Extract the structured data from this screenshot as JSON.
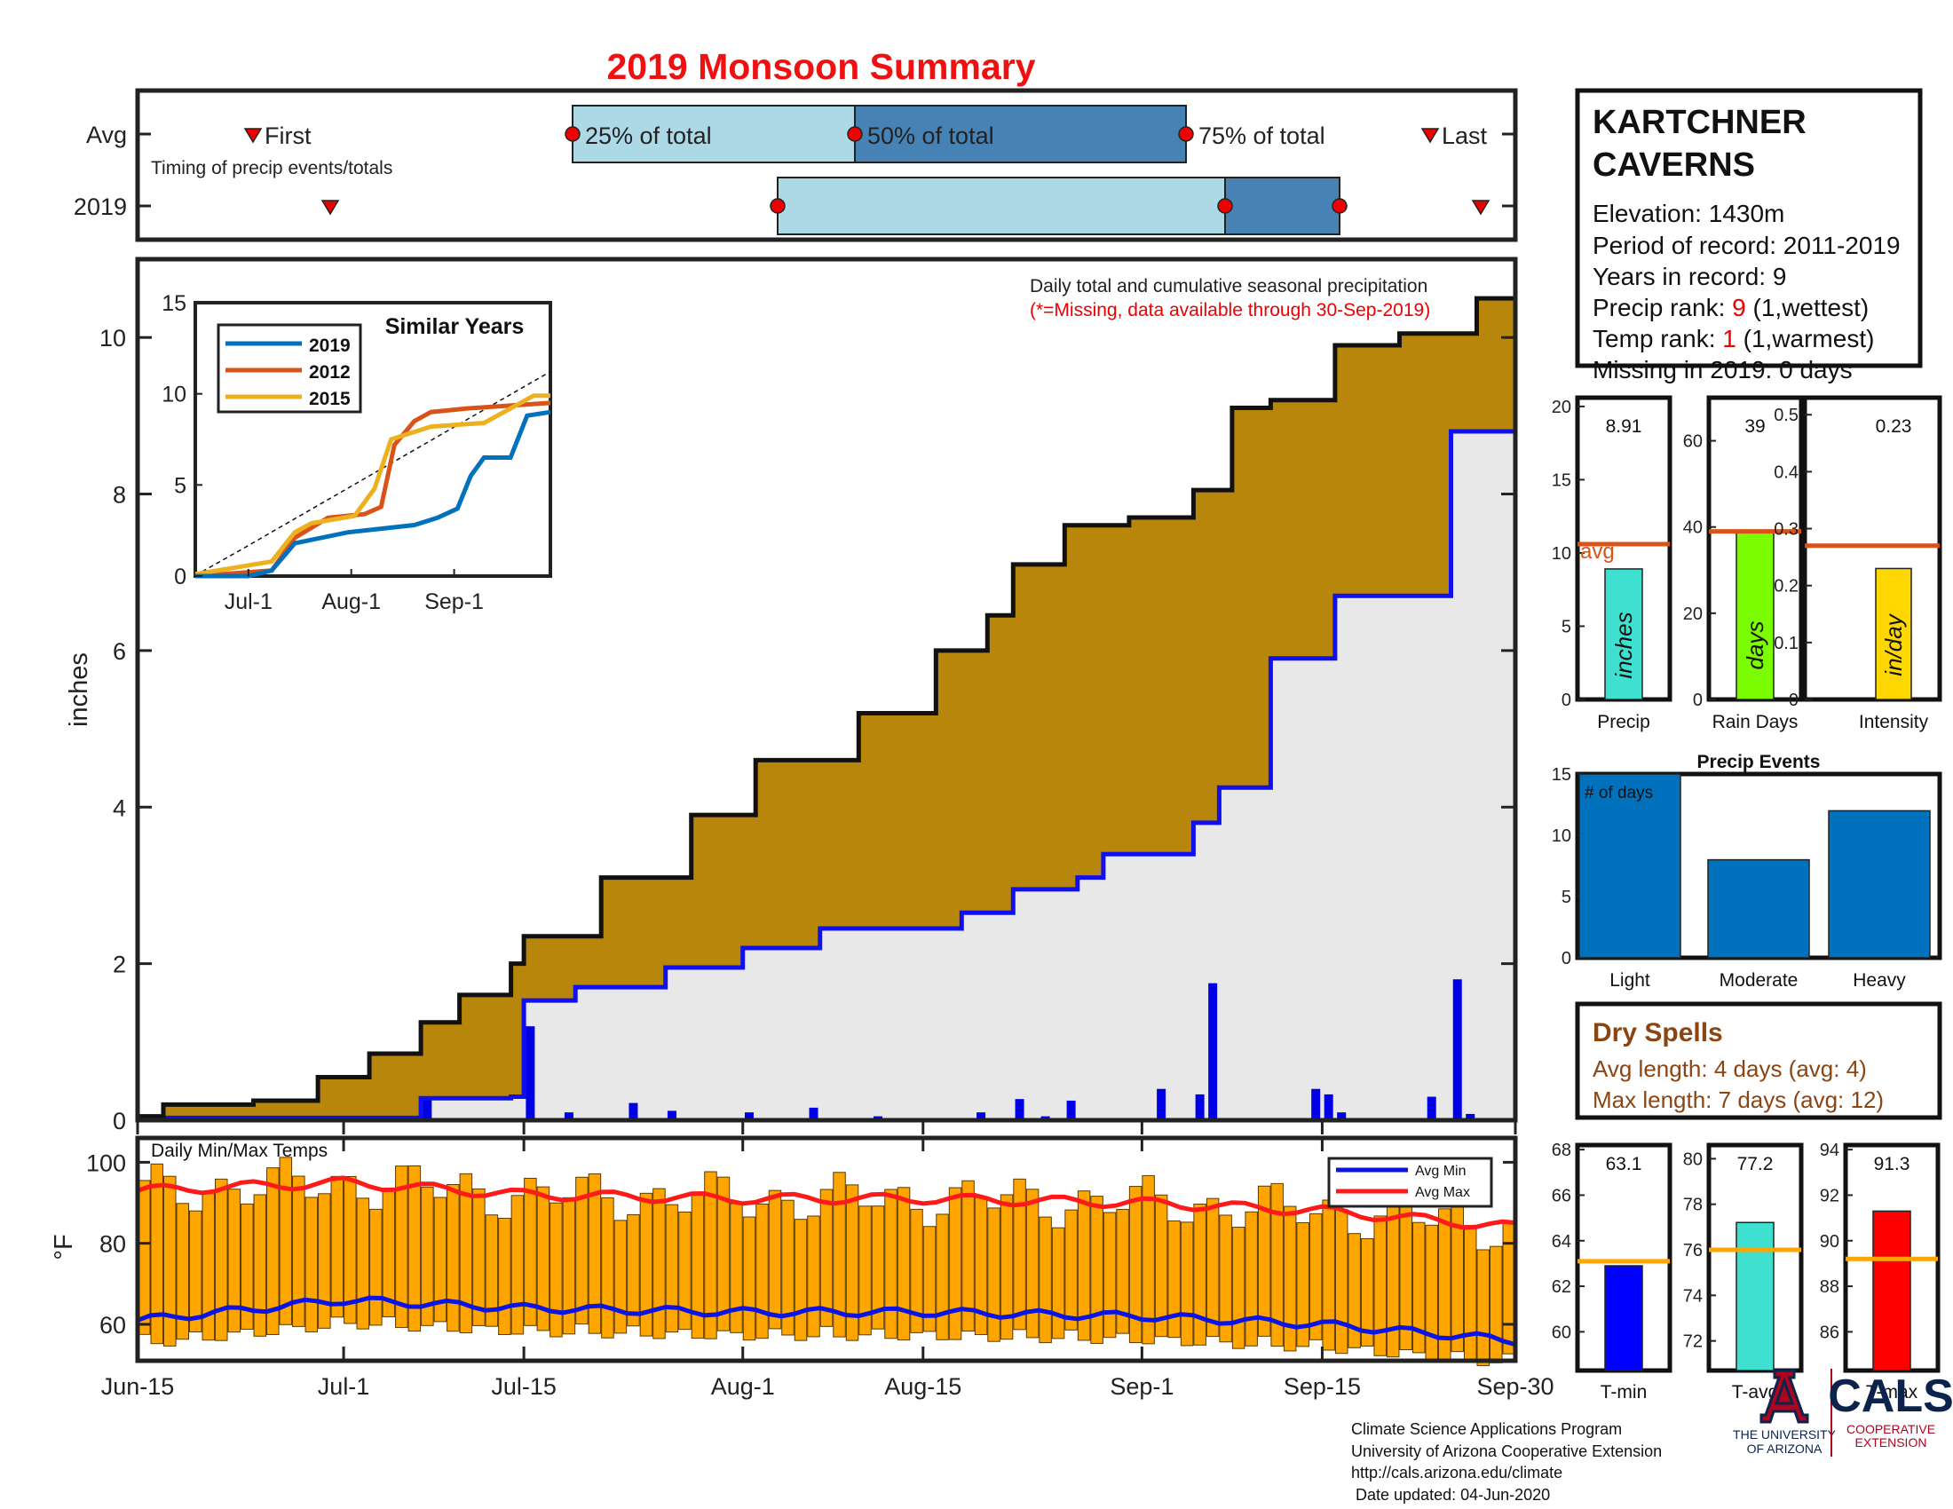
{
  "title": "2019 Monsoon Summary",
  "timing": {
    "row_labels": [
      "Avg",
      "2019"
    ],
    "avg_first_label": "First",
    "avg_last_label": "Last",
    "p25_label": "25% of total",
    "p50_label": "50% of total",
    "p75_label": "75% of total",
    "caption": "Timing of precip events/totals"
  },
  "station": {
    "name_line1": "KARTCHNER",
    "name_line2": "CAVERNS",
    "elevation": "Elevation: 1430m",
    "period": "Period of record: 2011-2019",
    "years": "Years in record: 9",
    "precip_rank_prefix": "Precip rank: ",
    "precip_rank_value": "9",
    "precip_rank_suffix": " (1,wettest)",
    "temp_rank_prefix": "Temp rank: ",
    "temp_rank_value": "1",
    "temp_rank_suffix": " (1,warmest)",
    "missing": "Missing in 2019: 0 days"
  },
  "main": {
    "ylabel": "inches",
    "note1": "Daily total and cumulative seasonal precipitation",
    "note2": "(*=Missing, data available through 30-Sep-2019)",
    "xticks": [
      "Jun-15",
      "Jul-1",
      "Jul-15",
      "Aug-1",
      "Aug-15",
      "Sep-1",
      "Sep-15",
      "Sep-30"
    ],
    "yticks": [
      "0",
      "2",
      "4",
      "6",
      "8",
      "10"
    ]
  },
  "inset": {
    "title": "Similar Years",
    "legend": [
      "2019",
      "2012",
      "2015"
    ],
    "xticks": [
      "Jul-1",
      "Aug-1",
      "Sep-1"
    ],
    "yticks": [
      "0",
      "5",
      "10",
      "15"
    ]
  },
  "temps": {
    "title": "Daily Min/Max Temps",
    "ylabel": "°F",
    "yticks": [
      "60",
      "80",
      "100"
    ],
    "legend": [
      "Avg Min",
      "Avg Max"
    ]
  },
  "stats": {
    "precip": {
      "value": "8.91",
      "label": "Precip",
      "unit": "inches",
      "yticks": [
        "0",
        "5",
        "10",
        "15",
        "20"
      ],
      "avg_label": "avg"
    },
    "raindays": {
      "value": "39",
      "label": "Rain Days",
      "unit": "days",
      "yticks": [
        "0",
        "20",
        "40",
        "60"
      ]
    },
    "intensity": {
      "value": "0.23",
      "label": "Intensity",
      "unit": "in/day",
      "yticks": [
        "0",
        "0.1",
        "0.2",
        "0.3",
        "0.4",
        "0.5"
      ]
    }
  },
  "events": {
    "title": "Precip Events",
    "annotation": "# of days",
    "categories": [
      "Light",
      "Moderate",
      "Heavy"
    ],
    "yticks": [
      "0",
      "5",
      "10",
      "15"
    ]
  },
  "dry": {
    "title": "Dry Spells",
    "avg": "Avg length: 4 days (avg: 4)",
    "max": "Max length: 7 days (avg: 12)"
  },
  "tstats": {
    "tmin": {
      "value": "63.1",
      "label": "T-min",
      "yticks": [
        "60",
        "62",
        "64",
        "66",
        "68"
      ]
    },
    "tavg": {
      "value": "77.2",
      "label": "T-avg",
      "yticks": [
        "72",
        "74",
        "76",
        "78",
        "80"
      ]
    },
    "tmax": {
      "value": "91.3",
      "label": "T-max",
      "yticks": [
        "86",
        "88",
        "90",
        "92",
        "94"
      ]
    }
  },
  "footer": {
    "line1": "Climate Science Applications Program",
    "line2": "University of Arizona Cooperative Extension",
    "line3": "http://cals.arizona.edu/climate",
    "line4": " Date updated: 04-Jun-2020",
    "ua_logo1": "THE UNIVERSITY",
    "ua_logo2": "OF ARIZONA",
    "cals_logo": "CALS",
    "cals_sub1": "COOPERATIVE",
    "cals_sub2": "EXTENSION"
  },
  "colors": {
    "cumulative_fill": "#b8860b",
    "avg_fill": "#e8e8e8",
    "precip_bars": "#0000e6",
    "avg_line": "#1010ee",
    "temp_bars": "#ffa500",
    "avg_max": "#ff1a1a",
    "avg_min": "#0a14e6",
    "title_red": "#ee1111",
    "timing_light": "#add8e6",
    "timing_dark": "#4682b4",
    "dry_brown": "#8b4513",
    "avg_ref": "#d95319",
    "events_bar": "#0072bd"
  },
  "chart_data": [
    {
      "type": "area",
      "title": "Daily total and cumulative seasonal precipitation",
      "ylabel": "inches",
      "ylim": [
        0,
        11
      ],
      "x_range": [
        "Jun-15",
        "Sep-30"
      ],
      "series": [
        {
          "name": "cumulative 2019",
          "x": [
            "Jun-15",
            "Jun-17",
            "Jun-24",
            "Jun-29",
            "Jul-3",
            "Jul-7",
            "Jul-10",
            "Jul-14",
            "Jul-15",
            "Jul-21",
            "Jul-28",
            "Aug-2",
            "Aug-10",
            "Aug-16",
            "Aug-20",
            "Aug-22",
            "Aug-26",
            "Aug-31",
            "Sep-5",
            "Sep-8",
            "Sep-11",
            "Sep-16",
            "Sep-21",
            "Sep-27",
            "Sep-30"
          ],
          "values": [
            0.05,
            0.2,
            0.25,
            0.55,
            0.85,
            1.25,
            1.6,
            2.0,
            2.35,
            3.1,
            3.9,
            4.6,
            5.2,
            6.0,
            6.45,
            7.1,
            7.6,
            7.7,
            8.05,
            9.1,
            9.2,
            9.9,
            10.05,
            10.5,
            10.6
          ]
        },
        {
          "name": "average cumulative",
          "x": [
            "Jun-15",
            "Jul-7",
            "Jul-14",
            "Jul-15",
            "Jul-19",
            "Jul-23",
            "Jul-26",
            "Aug-1",
            "Aug-7",
            "Aug-18",
            "Aug-22",
            "Aug-27",
            "Aug-29",
            "Sep-5",
            "Sep-7",
            "Sep-11",
            "Sep-14",
            "Sep-16",
            "Sep-24",
            "Sep-25",
            "Sep-30"
          ],
          "values": [
            0.03,
            0.28,
            0.3,
            1.53,
            1.7,
            1.7,
            1.95,
            2.2,
            2.45,
            2.65,
            2.95,
            3.1,
            3.4,
            3.8,
            4.25,
            5.9,
            5.9,
            6.7,
            6.7,
            8.8,
            8.9
          ]
        },
        {
          "name": "daily precip",
          "x": [
            "Jul-7",
            "Jul-15",
            "Jul-18",
            "Jul-23",
            "Jul-26",
            "Aug-1",
            "Aug-6",
            "Aug-11",
            "Aug-19",
            "Aug-22",
            "Aug-24",
            "Aug-26",
            "Sep-2",
            "Sep-5",
            "Sep-6",
            "Sep-14",
            "Sep-15",
            "Sep-16",
            "Sep-23",
            "Sep-25",
            "Sep-26"
          ],
          "values": [
            0.28,
            1.2,
            0.1,
            0.22,
            0.12,
            0.1,
            0.16,
            0.05,
            0.1,
            0.27,
            0.05,
            0.25,
            0.4,
            0.33,
            1.75,
            0.4,
            0.33,
            0.1,
            0.3,
            1.8,
            0.08
          ]
        }
      ]
    },
    {
      "type": "line",
      "title": "Similar Years",
      "x_range": [
        "Jun-15",
        "Sep-30"
      ],
      "ylim": [
        0,
        15
      ],
      "series": [
        {
          "name": "2019",
          "x": [
            "Jun-15",
            "Jul-1",
            "Jul-8",
            "Jul-15",
            "Jul-31",
            "Aug-10",
            "Aug-20",
            "Aug-27",
            "Sep-2",
            "Sep-6",
            "Sep-10",
            "Sep-18",
            "Sep-23",
            "Sep-30"
          ],
          "values": [
            0.0,
            0.0,
            0.3,
            1.8,
            2.4,
            2.6,
            2.8,
            3.2,
            3.7,
            5.5,
            6.5,
            6.5,
            8.8,
            9.0
          ]
        },
        {
          "name": "2012",
          "x": [
            "Jun-15",
            "Jul-8",
            "Jul-15",
            "Jul-25",
            "Aug-5",
            "Aug-10",
            "Aug-14",
            "Aug-20",
            "Aug-25",
            "Sep-5",
            "Sep-30"
          ],
          "values": [
            0.0,
            0.3,
            2.1,
            3.2,
            3.4,
            3.8,
            7.2,
            8.5,
            9.0,
            9.2,
            9.5
          ]
        },
        {
          "name": "2015",
          "x": [
            "Jun-15",
            "Jul-8",
            "Jul-15",
            "Jul-20",
            "Aug-2",
            "Aug-8",
            "Aug-13",
            "Aug-25",
            "Sep-10",
            "Sep-25",
            "Sep-30"
          ],
          "values": [
            0.1,
            0.8,
            2.4,
            2.9,
            3.3,
            4.8,
            7.5,
            8.2,
            8.4,
            9.9,
            9.9
          ]
        }
      ]
    },
    {
      "type": "bar",
      "title": "Daily Min/Max Temps",
      "ylabel": "°F",
      "x_range": [
        "Jun-15",
        "Sep-30"
      ],
      "ylim": [
        51,
        106
      ],
      "series": [
        {
          "name": "Avg Max",
          "x": [
            "Jun-15",
            "Jul-1",
            "Jul-15",
            "Aug-1",
            "Aug-15",
            "Sep-1",
            "Sep-15",
            "Sep-30"
          ],
          "values": [
            93,
            95,
            92,
            91,
            91,
            90,
            88,
            84
          ]
        },
        {
          "name": "Avg Min",
          "x": [
            "Jun-15",
            "Jul-1",
            "Jul-15",
            "Aug-1",
            "Aug-15",
            "Sep-1",
            "Sep-15",
            "Sep-30"
          ],
          "values": [
            61,
            66,
            64,
            63,
            63,
            62,
            60,
            56
          ]
        }
      ]
    },
    {
      "type": "bar",
      "categories": [
        "Precip"
      ],
      "values": [
        8.91
      ],
      "ylim": [
        0,
        20
      ],
      "avg": 10.6
    },
    {
      "type": "bar",
      "categories": [
        "Rain Days"
      ],
      "values": [
        39
      ],
      "ylim": [
        0,
        70
      ],
      "avg": 39
    },
    {
      "type": "bar",
      "categories": [
        "Intensity"
      ],
      "values": [
        0.23
      ],
      "ylim": [
        0,
        0.5
      ],
      "avg": 0.27
    },
    {
      "type": "bar",
      "title": "Precip Events",
      "categories": [
        "Light",
        "Moderate",
        "Heavy"
      ],
      "values": [
        15,
        8,
        12
      ],
      "ylim": [
        0,
        15
      ]
    },
    {
      "type": "bar",
      "categories": [
        "T-min",
        "T-avg",
        "T-max"
      ],
      "values": [
        63.1,
        77.2,
        91.3
      ],
      "avg": [
        63.1,
        76.0,
        89.2
      ]
    }
  ]
}
